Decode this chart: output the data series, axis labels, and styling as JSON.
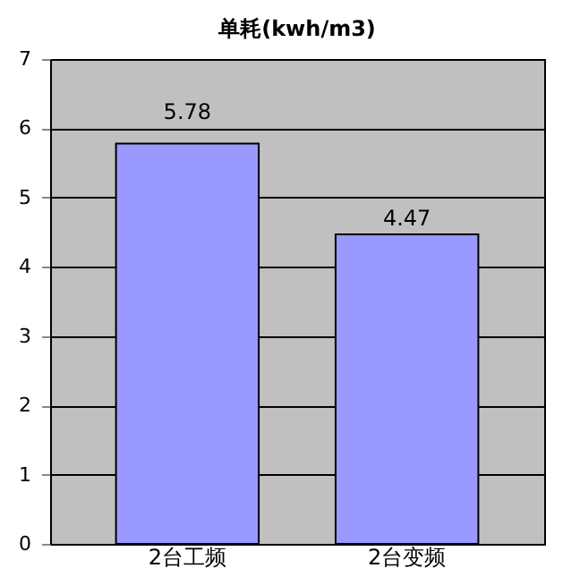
{
  "chart_data": {
    "type": "bar",
    "title": "单耗(kwh/m3)",
    "categories": [
      "2台工频",
      "2台变频"
    ],
    "values": [
      5.78,
      4.47
    ],
    "color": "#9999ff",
    "ylim": [
      0,
      7
    ],
    "yticks": [
      0,
      1,
      2,
      3,
      4,
      5,
      6,
      7
    ],
    "grid": "y",
    "data_labels": true
  }
}
